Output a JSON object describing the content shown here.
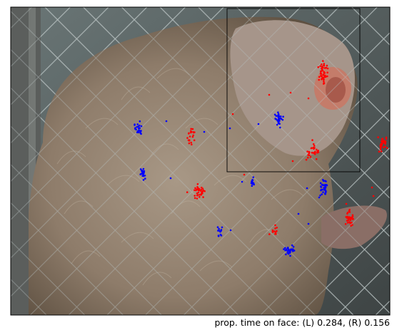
{
  "caption": "prop. time on face: (L) 0.284, (R) 0.156",
  "colors": {
    "left_points": "#ff0000",
    "right_points": "#0000ff",
    "frame": "#000000",
    "face_box": "#000000"
  },
  "photo": {
    "subject": "monkey-behind-fence",
    "fence_color": "#7e8c8c",
    "fur_color": "#9b8a78"
  },
  "legend_keys": [
    "L",
    "R"
  ],
  "values": {
    "L": 0.284,
    "R": 0.156
  }
}
